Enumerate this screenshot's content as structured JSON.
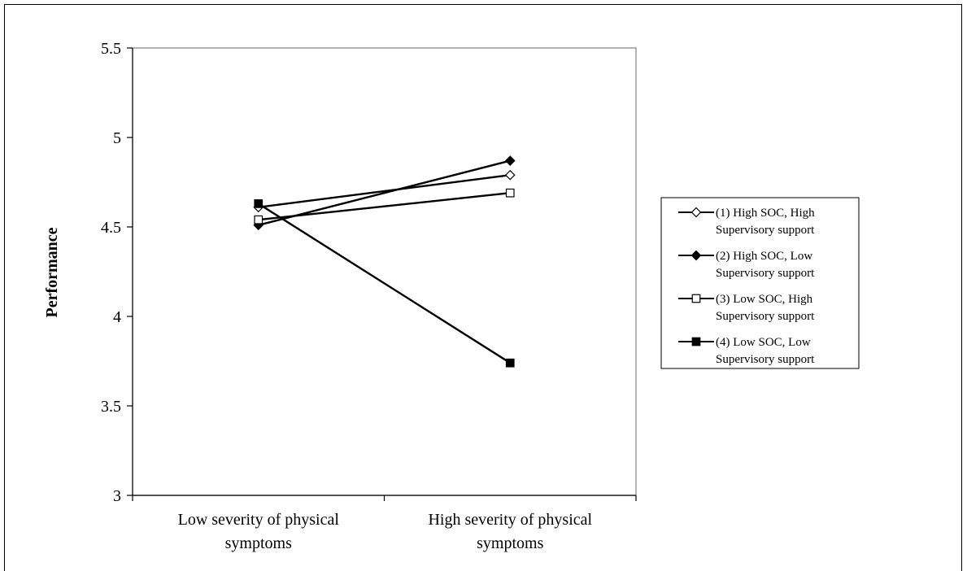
{
  "chart_data": {
    "type": "line",
    "ylabel": "Performance",
    "xlabel": "",
    "ylim": [
      3,
      5.5
    ],
    "yticks": [
      "3",
      "3.5",
      "4",
      "4.5",
      "5",
      "5.5"
    ],
    "ytick_values": [
      3,
      3.5,
      4,
      4.5,
      5,
      5.5
    ],
    "categories": [
      [
        "Low severity of physical",
        "symptoms"
      ],
      [
        "High severity of physical",
        "symptoms"
      ]
    ],
    "grid": false,
    "legend_position": "right",
    "series": [
      {
        "name": [
          "(1) High SOC, High",
          "Supervisory support"
        ],
        "marker": "diamond-open",
        "values": [
          4.61,
          4.79
        ]
      },
      {
        "name": [
          "(2) High SOC, Low",
          "Supervisory support"
        ],
        "marker": "diamond-filled",
        "values": [
          4.51,
          4.87
        ]
      },
      {
        "name": [
          "(3) Low SOC, High",
          "Supervisory support"
        ],
        "marker": "square-open",
        "values": [
          4.54,
          4.69
        ]
      },
      {
        "name": [
          "(4) Low SOC, Low",
          "Supervisory support"
        ],
        "marker": "square-filled",
        "values": [
          4.63,
          3.74
        ]
      }
    ],
    "line_color": "#000000",
    "background": "#ffffff"
  }
}
